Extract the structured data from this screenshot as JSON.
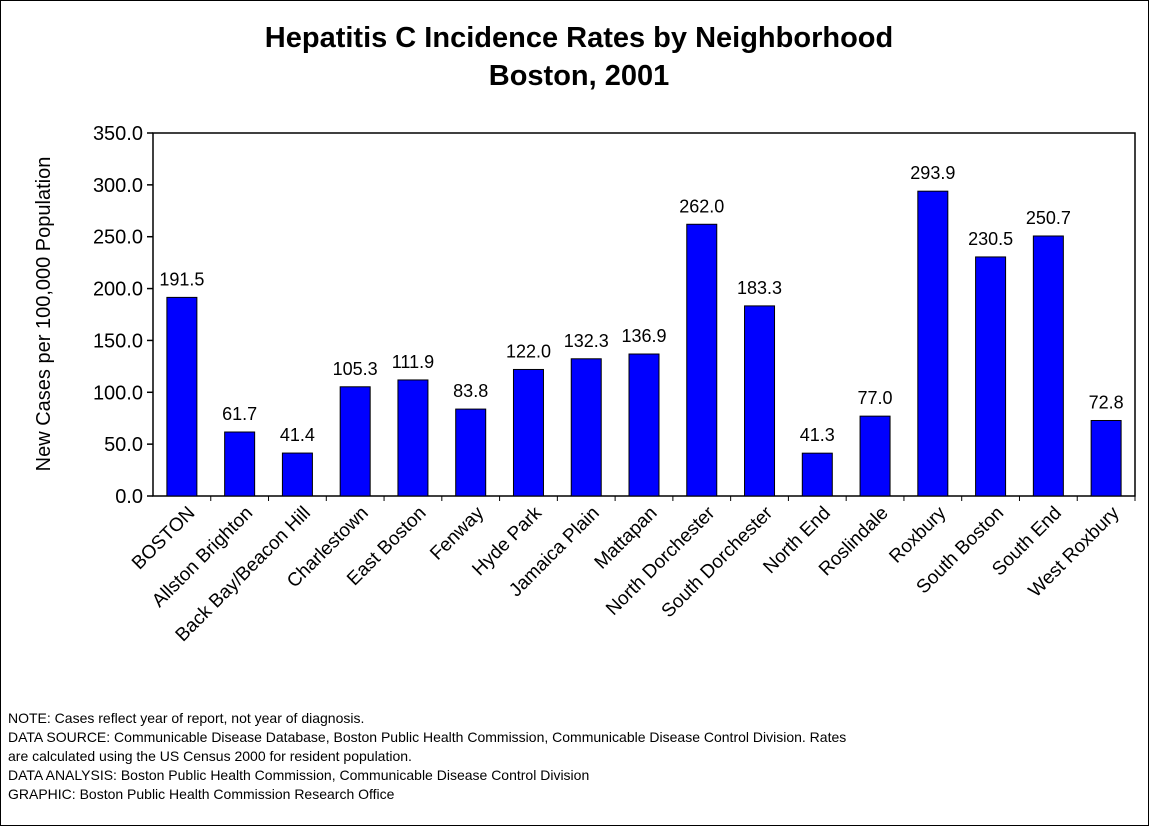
{
  "chart_data": {
    "type": "bar",
    "title": "Hepatitis C Incidence Rates by Neighborhood",
    "subtitle": "Boston, 2001",
    "xlabel": "",
    "ylabel": "New Cases per 100,000 Population",
    "ylim": [
      0,
      350
    ],
    "yticks": [
      "0.0",
      "50.0",
      "100.0",
      "150.0",
      "200.0",
      "250.0",
      "300.0",
      "350.0"
    ],
    "grid": false,
    "legend": "none",
    "bar_color": "#0000ff",
    "categories": [
      "BOSTON",
      "Allston Brighton",
      "Back Bay/Beacon Hill",
      "Charlestown",
      "East Boston",
      "Fenway",
      "Hyde Park",
      "Jamaica Plain",
      "Mattapan",
      "North Dorchester",
      "South Dorchester",
      "North End",
      "Roslindale",
      "Roxbury",
      "South Boston",
      "South End",
      "West Roxbury"
    ],
    "values": [
      191.5,
      61.7,
      41.4,
      105.3,
      111.9,
      83.8,
      122.0,
      132.3,
      136.9,
      262.0,
      183.3,
      41.3,
      77.0,
      293.9,
      230.5,
      250.7,
      72.8
    ],
    "value_labels": [
      "191.5",
      "61.7",
      "41.4",
      "105.3",
      "111.9",
      "83.8",
      "122.0",
      "132.3",
      "136.9",
      "262.0",
      "183.3",
      "41.3",
      "77.0",
      "293.9",
      "230.5",
      "250.7",
      "72.8"
    ]
  },
  "notes": {
    "note": "NOTE:  Cases reflect year of report, not year of diagnosis.",
    "source_line1": "DATA SOURCE:  Communicable Disease Database, Boston Public Health Commission, Communicable Disease Control Division. Rates",
    "source_line2": "are calculated using the US Census 2000 for resident population.",
    "analysis": "DATA ANALYSIS:  Boston Public Health Commission, Communicable Disease Control Division",
    "graphic": "GRAPHIC:  Boston Public Health Commission Research Office"
  }
}
